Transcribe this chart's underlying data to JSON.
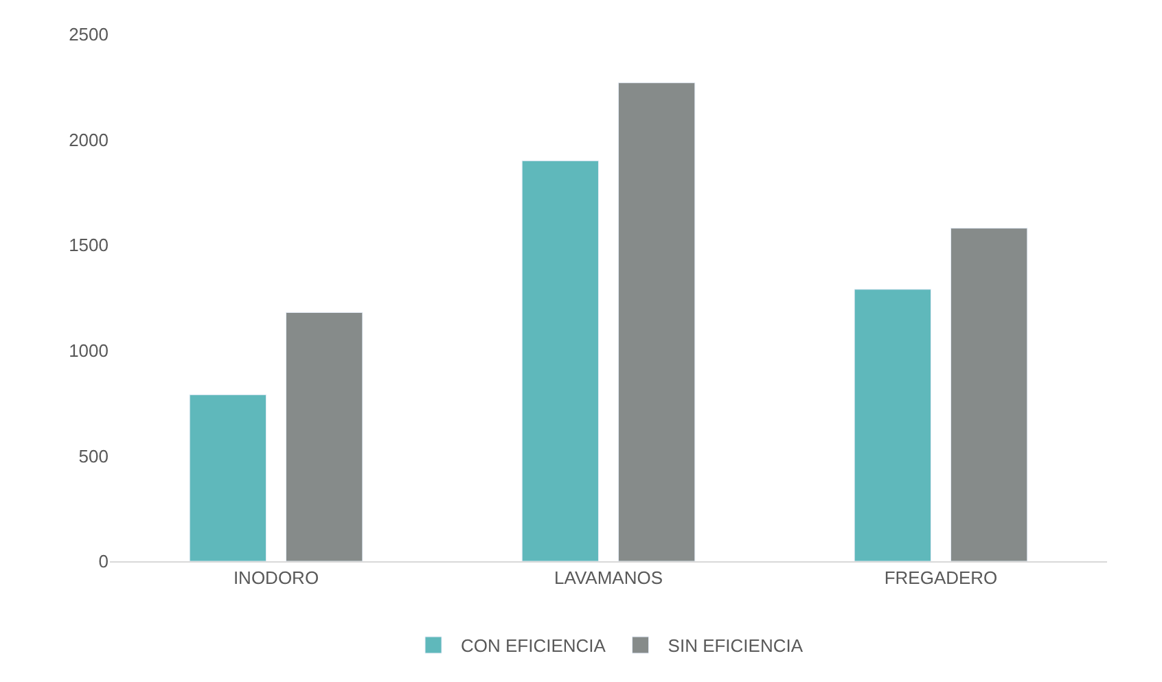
{
  "chart_data": {
    "type": "bar",
    "categories": [
      "INODORO",
      "LAVAMANOS",
      "FREGADERO"
    ],
    "series": [
      {
        "name": "CON EFICIENCIA",
        "color": "#5fb8bb",
        "values": [
          790,
          1900,
          1290
        ]
      },
      {
        "name": "SIN EFICIENCIA",
        "color": "#868b8a",
        "values": [
          1180,
          2270,
          1580
        ]
      }
    ],
    "ylim": [
      0,
      2500
    ],
    "yticks": [
      0,
      500,
      1000,
      1500,
      2000,
      2500
    ],
    "legend": "bottom"
  }
}
